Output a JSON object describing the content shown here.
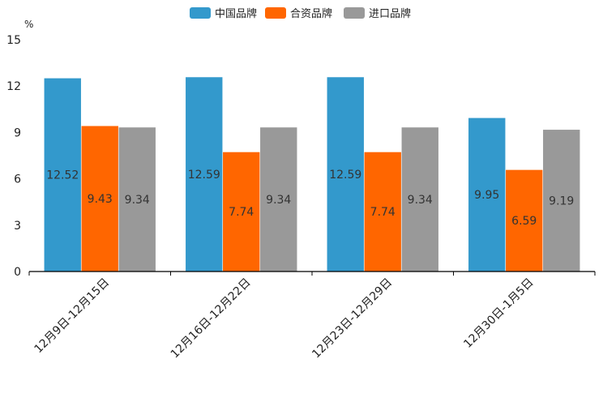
{
  "chart_data": {
    "type": "bar",
    "ylabel": "%",
    "ylim": [
      0,
      15
    ],
    "yticks": [
      "0",
      "3",
      "6",
      "9",
      "12",
      "15"
    ],
    "legend_position": "top-center",
    "categories": [
      "12月9日-12月15日",
      "12月16日-12月22日",
      "12月23日-12月29日",
      "12月30日-1月5日"
    ],
    "series": [
      {
        "name": "中国品牌",
        "color": "#3399CC",
        "values": [
          12.52,
          12.59,
          12.59,
          9.95
        ],
        "labels": [
          "12.52",
          "12.59",
          "12.59",
          "9.95"
        ]
      },
      {
        "name": "合资品牌",
        "color": "#FF6600",
        "values": [
          9.43,
          7.74,
          7.74,
          6.59
        ],
        "labels": [
          "9.43",
          "7.74",
          "7.74",
          "6.59"
        ]
      },
      {
        "name": "进口品牌",
        "color": "#999999",
        "values": [
          9.34,
          9.34,
          9.34,
          9.19
        ],
        "labels": [
          "9.34",
          "9.34",
          "9.34",
          "9.19"
        ]
      }
    ]
  }
}
